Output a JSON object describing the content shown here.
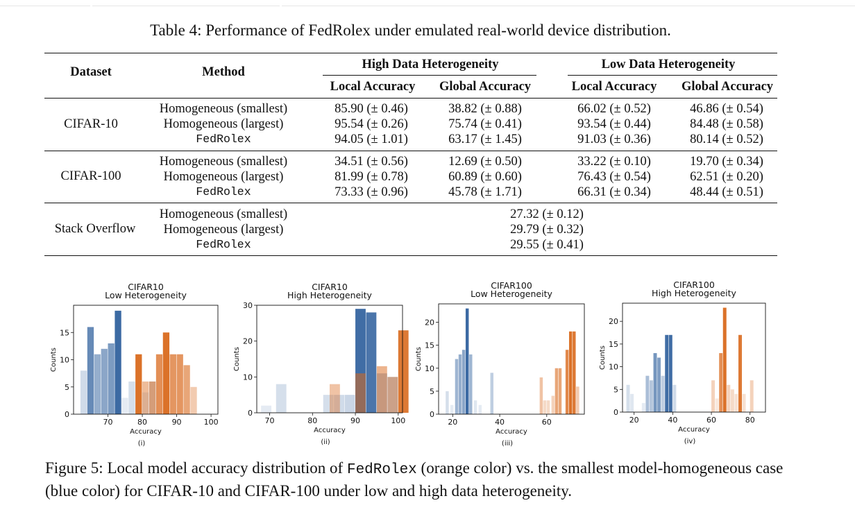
{
  "table": {
    "caption": "Table 4: Performance of FedRolex under emulated real-world device distribution.",
    "headers": {
      "dataset": "Dataset",
      "method": "Method",
      "high_group": "High Data Heterogeneity",
      "low_group": "Low Data Heterogeneity",
      "local": "Local Accuracy",
      "global": "Global Accuracy"
    },
    "groups": [
      {
        "dataset": "CIFAR-10",
        "methods": [
          "Homogeneous (smallest)",
          "Homogeneous (largest)",
          "FedRolex"
        ],
        "high_local": [
          "85.90 (± 0.46)",
          "95.54 (± 0.26)",
          "94.05 (± 1.01)"
        ],
        "high_global": [
          "38.82 (± 0.88)",
          "75.74 (± 0.41)",
          "63.17 (± 1.45)"
        ],
        "low_local": [
          "66.02 (± 0.52)",
          "93.54 (± 0.44)",
          "91.03 (± 0.36)"
        ],
        "low_global": [
          "46.86 (± 0.54)",
          "84.48 (± 0.58)",
          "80.14 (± 0.52)"
        ]
      },
      {
        "dataset": "CIFAR-100",
        "methods": [
          "Homogeneous (smallest)",
          "Homogeneous (largest)",
          "FedRolex"
        ],
        "high_local": [
          "34.51 (± 0.56)",
          "81.99 (± 0.78)",
          "73.33 (± 0.96)"
        ],
        "high_global": [
          "12.69 (± 0.50)",
          "60.89 (± 0.60)",
          "45.78 (± 1.71)"
        ],
        "low_local": [
          "33.22 (± 0.10)",
          "76.43 (± 0.54)",
          "66.31 (± 0.34)"
        ],
        "low_global": [
          "19.70 (± 0.34)",
          "62.51 (± 0.20)",
          "48.44 (± 0.51)"
        ]
      }
    ],
    "stack": {
      "dataset": "Stack Overflow",
      "methods": [
        "Homogeneous (smallest)",
        "Homogeneous (largest)",
        "FedRolex"
      ],
      "values": [
        "27.32 (± 0.12)",
        "29.79 (± 0.32)",
        "29.55 (± 0.41)"
      ]
    }
  },
  "figure": {
    "caption_a": "Figure 5:  Local model accuracy distribution of ",
    "caption_code": "FedRolex",
    "caption_b": " (orange color) vs. the smallest model-homogeneous case (blue color) for CIFAR-10 and CIFAR-100 under low and high data heterogeneity."
  },
  "chart_data": [
    {
      "type": "bar",
      "title": "CIFAR10\nLow Heterogeneity",
      "sublabel": "(i)",
      "xlabel": "Accuracy",
      "ylabel": "Counts",
      "xlim": [
        60,
        102
      ],
      "ylim": [
        0,
        20
      ],
      "xticks": [
        70,
        80,
        90,
        100
      ],
      "yticks": [
        0,
        5,
        10,
        15
      ],
      "binwidth": 2,
      "series": [
        {
          "name": "Homogeneous (smallest)",
          "color": "#2b5d9b",
          "bins": [
            {
              "x": 62,
              "y": 8,
              "a": 0.22
            },
            {
              "x": 64,
              "y": 16,
              "a": 0.72
            },
            {
              "x": 66,
              "y": 11,
              "a": 0.5
            },
            {
              "x": 68,
              "y": 12,
              "a": 0.55
            },
            {
              "x": 70,
              "y": 13,
              "a": 0.62
            },
            {
              "x": 72,
              "y": 19,
              "a": 0.92
            },
            {
              "x": 74,
              "y": 3,
              "a": 0.12
            },
            {
              "x": 76,
              "y": 6,
              "a": 0.2
            },
            {
              "x": 78,
              "y": 2,
              "a": 0.1
            },
            {
              "x": 80,
              "y": 4,
              "a": 0.15
            },
            {
              "x": 82,
              "y": 6,
              "a": 0.22
            }
          ]
        },
        {
          "name": "FedRolex",
          "color": "#d96a1e",
          "bins": [
            {
              "x": 78,
              "y": 11,
              "a": 0.95
            },
            {
              "x": 80,
              "y": 6,
              "a": 0.45
            },
            {
              "x": 82,
              "y": 6,
              "a": 0.55
            },
            {
              "x": 84,
              "y": 11,
              "a": 0.75
            },
            {
              "x": 86,
              "y": 15,
              "a": 0.95
            },
            {
              "x": 88,
              "y": 11,
              "a": 0.7
            },
            {
              "x": 90,
              "y": 11,
              "a": 0.7
            },
            {
              "x": 92,
              "y": 9,
              "a": 0.6
            },
            {
              "x": 94,
              "y": 5,
              "a": 0.35
            }
          ]
        }
      ]
    },
    {
      "type": "bar",
      "title": "CIFAR10\nHigh Heterogeneity",
      "sublabel": "(ii)",
      "xlabel": "Accuracy",
      "ylabel": "Counts",
      "xlim": [
        67,
        101
      ],
      "ylim": [
        0,
        30
      ],
      "xticks": [
        70,
        80,
        90,
        100
      ],
      "yticks": [
        0,
        10,
        20,
        30
      ],
      "binwidth": 2.5,
      "series": [
        {
          "name": "Homogeneous (smallest)",
          "color": "#2b5d9b",
          "bins": [
            {
              "x": 68,
              "y": 2,
              "a": 0.12
            },
            {
              "x": 71.5,
              "y": 8,
              "a": 0.2
            },
            {
              "x": 82.5,
              "y": 5,
              "a": 0.2
            },
            {
              "x": 85,
              "y": 5,
              "a": 0.22
            },
            {
              "x": 87.5,
              "y": 5,
              "a": 0.25
            },
            {
              "x": 90,
              "y": 29,
              "a": 0.9
            },
            {
              "x": 92.5,
              "y": 28,
              "a": 0.85
            },
            {
              "x": 95,
              "y": 11,
              "a": 0.35
            },
            {
              "x": 97.5,
              "y": 10,
              "a": 0.3
            }
          ]
        },
        {
          "name": "FedRolex",
          "color": "#d96a1e",
          "bins": [
            {
              "x": 84,
              "y": 8,
              "a": 0.4
            },
            {
              "x": 90,
              "y": 11,
              "a": 0.55
            },
            {
              "x": 95,
              "y": 13,
              "a": 0.5
            },
            {
              "x": 97.5,
              "y": 10,
              "a": 0.45
            },
            {
              "x": 100,
              "y": 23,
              "a": 0.9
            }
          ]
        }
      ]
    },
    {
      "type": "bar",
      "title": "CIFAR100\nLow Heterogeneity",
      "sublabel": "(iii)",
      "xlabel": "Accuracy",
      "ylabel": "Counts",
      "xlim": [
        14,
        76
      ],
      "ylim": [
        0,
        24
      ],
      "xticks": [
        20,
        40,
        60
      ],
      "yticks": [
        0,
        5,
        10,
        15,
        20
      ],
      "binwidth": 1.5,
      "series": [
        {
          "name": "Homogeneous (smallest)",
          "color": "#2b5d9b",
          "bins": [
            {
              "x": 17,
              "y": 5,
              "a": 0.2
            },
            {
              "x": 19,
              "y": 2,
              "a": 0.12
            },
            {
              "x": 21,
              "y": 12,
              "a": 0.45
            },
            {
              "x": 22.5,
              "y": 13,
              "a": 0.5
            },
            {
              "x": 24,
              "y": 14,
              "a": 0.55
            },
            {
              "x": 25.5,
              "y": 23,
              "a": 0.92
            },
            {
              "x": 27,
              "y": 13,
              "a": 0.45
            },
            {
              "x": 29,
              "y": 3,
              "a": 0.15
            },
            {
              "x": 31,
              "y": 2,
              "a": 0.12
            },
            {
              "x": 36,
              "y": 9,
              "a": 0.3
            }
          ]
        },
        {
          "name": "FedRolex",
          "color": "#d96a1e",
          "bins": [
            {
              "x": 57,
              "y": 8,
              "a": 0.4
            },
            {
              "x": 58.5,
              "y": 3,
              "a": 0.25
            },
            {
              "x": 60,
              "y": 3,
              "a": 0.25
            },
            {
              "x": 62,
              "y": 4,
              "a": 0.3
            },
            {
              "x": 63.5,
              "y": 10,
              "a": 0.6
            },
            {
              "x": 65,
              "y": 10,
              "a": 0.6
            },
            {
              "x": 68,
              "y": 14,
              "a": 0.8
            },
            {
              "x": 69.5,
              "y": 18,
              "a": 0.95
            },
            {
              "x": 71,
              "y": 18,
              "a": 0.9
            },
            {
              "x": 72.5,
              "y": 6,
              "a": 0.35
            }
          ]
        }
      ]
    },
    {
      "type": "bar",
      "title": "CIFAR100\nHigh Heterogeneity",
      "sublabel": "(iv)",
      "xlabel": "Accuracy",
      "ylabel": "Counts",
      "xlim": [
        14,
        88
      ],
      "ylim": [
        0,
        24
      ],
      "xticks": [
        20,
        40,
        60,
        80
      ],
      "yticks": [
        0,
        5,
        10,
        15,
        20
      ],
      "binwidth": 2,
      "series": [
        {
          "name": "Homogeneous (smallest)",
          "color": "#2b5d9b",
          "bins": [
            {
              "x": 16,
              "y": 6,
              "a": 0.2
            },
            {
              "x": 18,
              "y": 4,
              "a": 0.15
            },
            {
              "x": 24,
              "y": 2,
              "a": 0.12
            },
            {
              "x": 26,
              "y": 8,
              "a": 0.4
            },
            {
              "x": 28,
              "y": 7,
              "a": 0.35
            },
            {
              "x": 30,
              "y": 13,
              "a": 0.65
            },
            {
              "x": 32,
              "y": 12,
              "a": 0.6
            },
            {
              "x": 34,
              "y": 8,
              "a": 0.3
            },
            {
              "x": 36,
              "y": 17,
              "a": 0.9
            },
            {
              "x": 38,
              "y": 17,
              "a": 0.9
            },
            {
              "x": 40,
              "y": 6,
              "a": 0.22
            }
          ]
        },
        {
          "name": "FedRolex",
          "color": "#d96a1e",
          "bins": [
            {
              "x": 60,
              "y": 7,
              "a": 0.3
            },
            {
              "x": 62,
              "y": 3,
              "a": 0.15
            },
            {
              "x": 64,
              "y": 13,
              "a": 0.75
            },
            {
              "x": 66,
              "y": 23,
              "a": 0.95
            },
            {
              "x": 68,
              "y": 6,
              "a": 0.3
            },
            {
              "x": 70,
              "y": 5,
              "a": 0.25
            },
            {
              "x": 72,
              "y": 4,
              "a": 0.2
            },
            {
              "x": 74,
              "y": 17,
              "a": 0.9
            },
            {
              "x": 76,
              "y": 4,
              "a": 0.2
            },
            {
              "x": 80,
              "y": 7,
              "a": 0.3
            }
          ]
        }
      ]
    }
  ]
}
